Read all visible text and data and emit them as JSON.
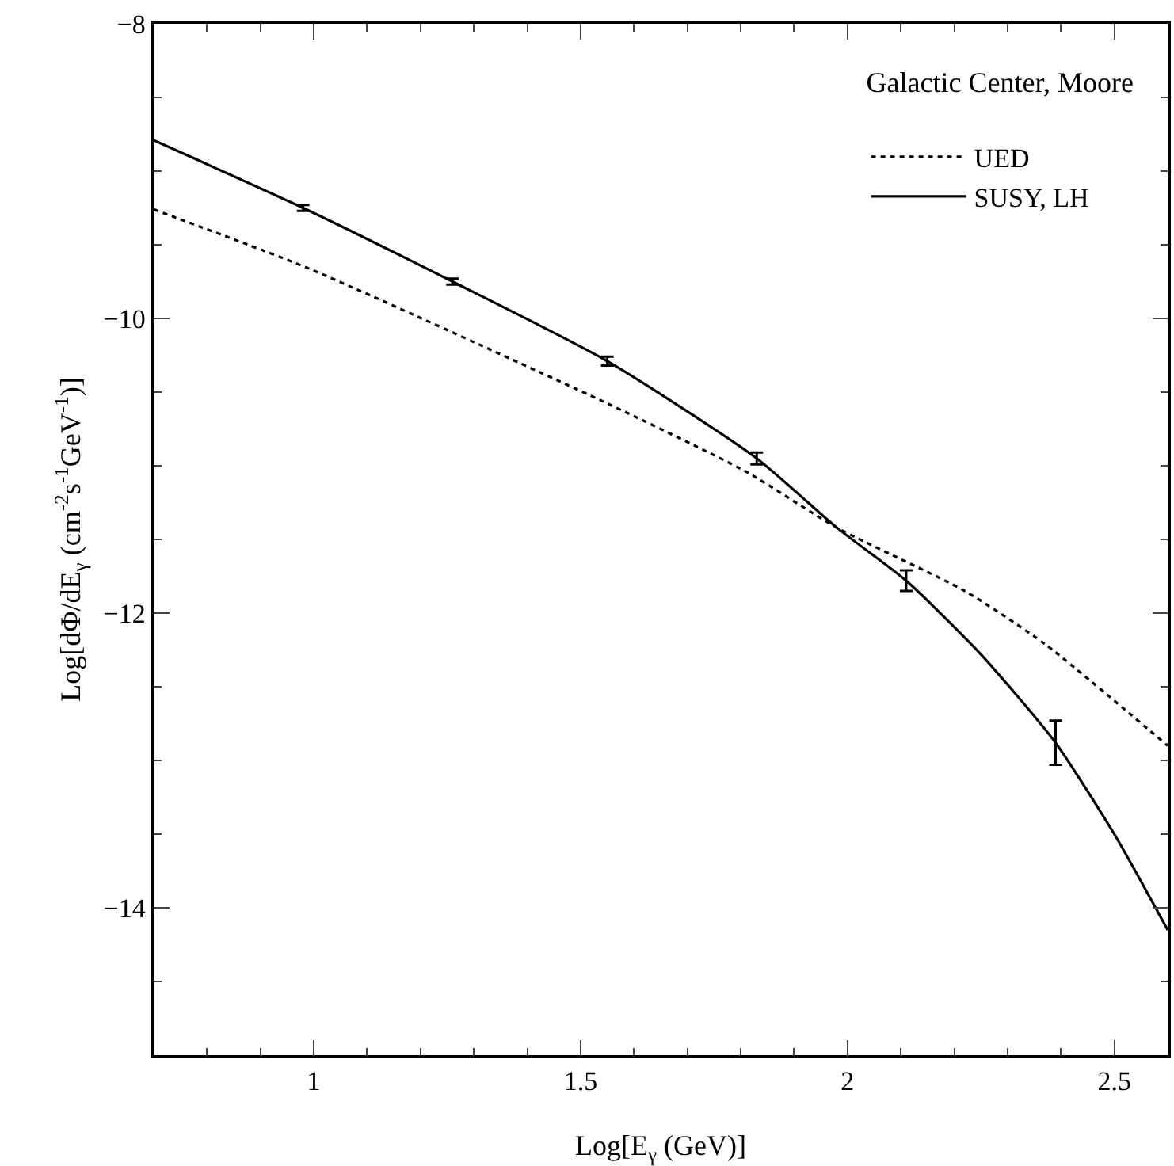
{
  "chart_data": {
    "type": "line",
    "xlabel": "Log[E$_{γ}$ (GeV)]",
    "ylabel": "Log[dΦ/dE$_{γ}$ (cm$^{-2}$s$^{-1}$GeV$^{-1}$)]",
    "legend_title": "Galactic Center, Moore",
    "legend": "top right",
    "grid": false,
    "xlim": [
      0.7,
      2.6
    ],
    "xticks": [
      1,
      1.5,
      2,
      2.5
    ],
    "ylim": [
      -15,
      -8
    ],
    "yticks": [
      -8,
      -10,
      -12,
      -14
    ],
    "series": [
      {
        "name": "UED",
        "line_style": "dotted",
        "color": "#000000",
        "x": [
          0.7,
          0.99,
          1.54,
          1.81,
          1.98,
          2.22,
          2.37,
          2.6
        ],
        "values": [
          -9.26,
          -9.66,
          -10.56,
          -11.04,
          -11.42,
          -11.85,
          -12.21,
          -12.9
        ]
      },
      {
        "name": "SUSY, LH",
        "line_style": "solid",
        "color": "#000000",
        "x": [
          0.7,
          0.98,
          1.26,
          1.55,
          1.83,
          1.98,
          2.11,
          2.25,
          2.39,
          2.5,
          2.55,
          2.6
        ],
        "values": [
          -8.79,
          -9.25,
          -9.75,
          -10.29,
          -10.95,
          -11.42,
          -11.78,
          -12.28,
          -12.88,
          -13.5,
          -13.82,
          -14.15
        ],
        "errors": [
          null,
          0.02,
          0.02,
          0.03,
          0.04,
          null,
          0.07,
          null,
          0.15,
          null,
          null,
          null
        ]
      }
    ]
  }
}
